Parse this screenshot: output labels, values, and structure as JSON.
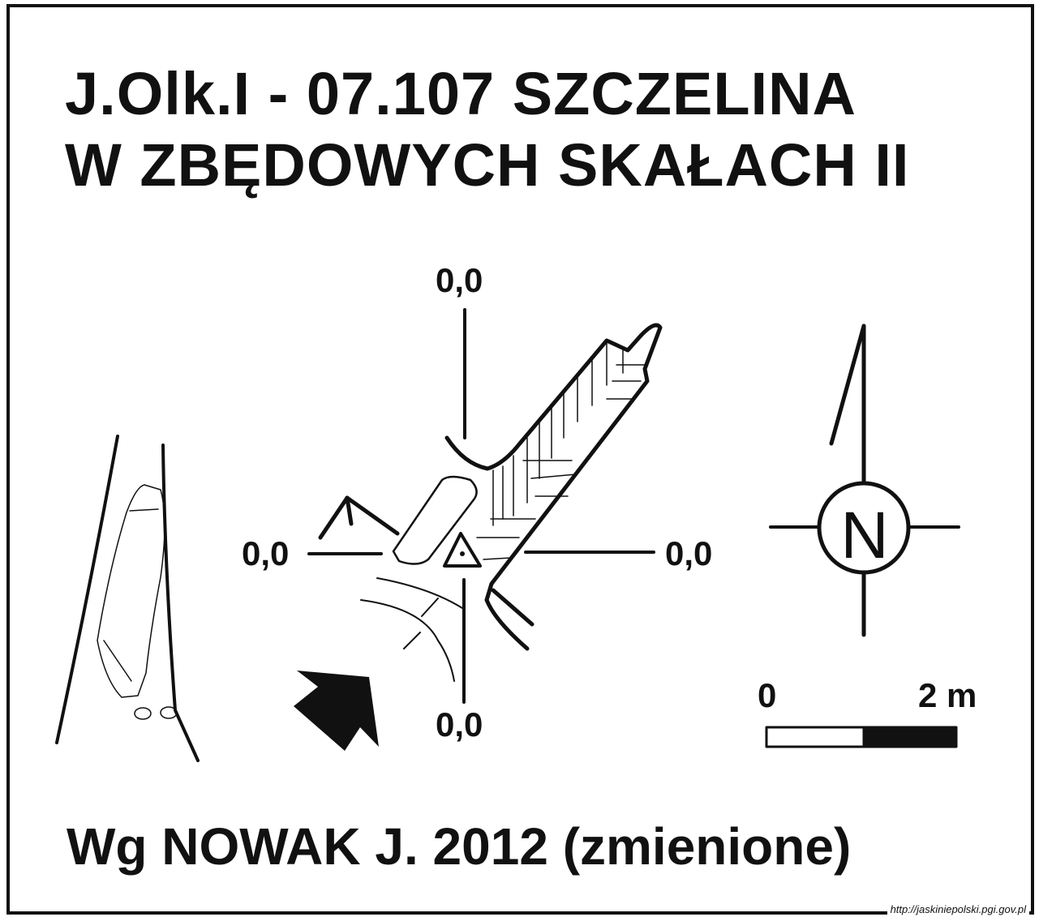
{
  "title": {
    "line1": "J.Olk.I - 07.107  SZCZELINA",
    "line2": "W ZBĘDOWYCH SKAŁACH II"
  },
  "survey_points": {
    "top": "0,0",
    "left": "0,0",
    "right": "0,0",
    "bottom": "0,0"
  },
  "compass": {
    "letter": "N",
    "icon": "north-arrow-icon"
  },
  "scale_bar": {
    "start_label": "0",
    "end_label": "2 m"
  },
  "source": "Wg NOWAK J. 2012 (zmienione)",
  "url": "http://jaskiniepolski.pgi.gov.pl",
  "colors": {
    "ink": "#111111",
    "paper": "#ffffff"
  }
}
